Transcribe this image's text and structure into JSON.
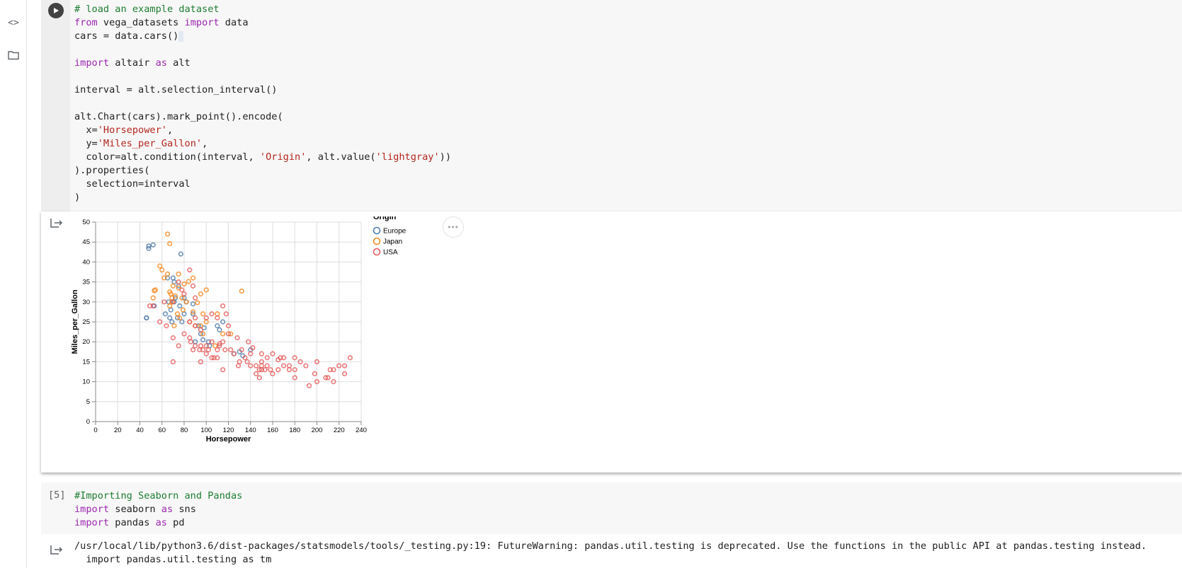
{
  "sidebar": {
    "code_icon": "code-icon",
    "folder_icon": "folder-icon",
    "code_glyph": "<>"
  },
  "cell1": {
    "lines": [
      "# load an example dataset",
      "from vega_datasets import data",
      "cars = data.cars()",
      "",
      "import altair as alt",
      "",
      "interval = alt.selection_interval()",
      "",
      "alt.Chart(cars).mark_point().encode(",
      "  x='Horsepower',",
      "  y='Miles_per_Gallon',",
      "  color=alt.condition(interval, 'Origin', alt.value('lightgray'))",
      ").properties(",
      "  selection=interval",
      ")"
    ]
  },
  "chart_data": {
    "type": "scatter",
    "xlabel": "Horsepower",
    "ylabel": "Miles_per_Gallon",
    "xlim": [
      0,
      240
    ],
    "ylim": [
      0,
      50
    ],
    "xticks": [
      0,
      20,
      40,
      60,
      80,
      100,
      120,
      140,
      160,
      180,
      200,
      220,
      240
    ],
    "yticks": [
      0,
      5,
      10,
      15,
      20,
      25,
      30,
      35,
      40,
      45,
      50
    ],
    "legend_title": "Origin",
    "grid": true,
    "series": [
      {
        "name": "Europe",
        "color": "#4c78a8",
        "points": [
          [
            46,
            26
          ],
          [
            46,
            26
          ],
          [
            48,
            43.4
          ],
          [
            48,
            44
          ],
          [
            52,
            44.3
          ],
          [
            53,
            29
          ],
          [
            63,
            27
          ],
          [
            65,
            36
          ],
          [
            67,
            26
          ],
          [
            69,
            25
          ],
          [
            70,
            36
          ],
          [
            71,
            30
          ],
          [
            74,
            26
          ],
          [
            76,
            29
          ],
          [
            77,
            42
          ],
          [
            78,
            25
          ],
          [
            80,
            31
          ],
          [
            82,
            30
          ],
          [
            88,
            29.5
          ],
          [
            90,
            20
          ],
          [
            95,
            22
          ],
          [
            98,
            23.5
          ],
          [
            102,
            20
          ],
          [
            103,
            19
          ],
          [
            110,
            24
          ],
          [
            112,
            23
          ],
          [
            115,
            25
          ],
          [
            125,
            17
          ],
          [
            130,
            17.5
          ],
          [
            133,
            16.5
          ],
          [
            140,
            18
          ],
          [
            66,
            30
          ],
          [
            71,
            35
          ],
          [
            75,
            34
          ],
          [
            68,
            28
          ],
          [
            72,
            31
          ],
          [
            80,
            27
          ],
          [
            88,
            27
          ],
          [
            93,
            24
          ],
          [
            97,
            20.5
          ]
        ]
      },
      {
        "name": "Japan",
        "color": "#f58518",
        "points": [
          [
            52,
            31
          ],
          [
            53,
            32.8
          ],
          [
            54,
            33
          ],
          [
            58,
            39
          ],
          [
            60,
            38
          ],
          [
            62,
            36
          ],
          [
            65,
            47
          ],
          [
            67,
            44.6
          ],
          [
            65,
            37
          ],
          [
            67,
            32.5
          ],
          [
            68,
            32
          ],
          [
            69,
            30
          ],
          [
            70,
            34
          ],
          [
            72,
            31.5
          ],
          [
            75,
            33.5
          ],
          [
            75,
            37
          ],
          [
            76,
            26
          ],
          [
            78,
            31
          ],
          [
            79,
            28
          ],
          [
            80,
            34.5
          ],
          [
            82,
            30
          ],
          [
            84,
            35.1
          ],
          [
            88,
            36
          ],
          [
            88,
            27.5
          ],
          [
            90,
            24
          ],
          [
            92,
            29.8
          ],
          [
            95,
            32
          ],
          [
            95,
            24
          ],
          [
            97,
            27
          ],
          [
            97,
            22
          ],
          [
            100,
            33
          ],
          [
            100,
            25
          ],
          [
            108,
            19
          ],
          [
            110,
            27
          ],
          [
            115,
            22
          ],
          [
            122,
            22
          ],
          [
            132,
            32.7
          ],
          [
            67,
            29
          ],
          [
            69,
            31
          ],
          [
            71,
            24
          ],
          [
            74,
            27
          ],
          [
            85,
            25
          ]
        ]
      },
      {
        "name": "USA",
        "color": "#e45756",
        "points": [
          [
            49,
            29
          ],
          [
            52,
            29
          ],
          [
            58,
            25
          ],
          [
            62,
            30
          ],
          [
            64,
            24
          ],
          [
            70,
            21
          ],
          [
            70,
            15
          ],
          [
            75,
            19
          ],
          [
            80,
            22
          ],
          [
            85,
            21
          ],
          [
            86,
            20
          ],
          [
            88,
            18
          ],
          [
            90,
            19
          ],
          [
            90,
            24
          ],
          [
            94,
            18
          ],
          [
            95,
            19
          ],
          [
            97,
            18
          ],
          [
            100,
            17
          ],
          [
            100,
            19
          ],
          [
            102,
            18
          ],
          [
            105,
            20
          ],
          [
            107,
            16
          ],
          [
            110,
            18
          ],
          [
            110,
            16
          ],
          [
            112,
            19
          ],
          [
            115,
            20
          ],
          [
            117,
            18
          ],
          [
            120,
            22
          ],
          [
            122,
            18
          ],
          [
            125,
            17
          ],
          [
            129,
            14
          ],
          [
            130,
            15
          ],
          [
            135,
            16
          ],
          [
            137,
            15
          ],
          [
            140,
            14
          ],
          [
            140,
            17
          ],
          [
            145,
            14
          ],
          [
            145,
            12
          ],
          [
            148,
            13
          ],
          [
            150,
            14
          ],
          [
            150,
            13
          ],
          [
            150,
            15
          ],
          [
            153,
            13
          ],
          [
            155,
            14
          ],
          [
            158,
            13
          ],
          [
            160,
            12
          ],
          [
            165,
            13
          ],
          [
            167,
            16
          ],
          [
            170,
            14
          ],
          [
            175,
            13
          ],
          [
            175,
            14
          ],
          [
            180,
            13
          ],
          [
            180,
            11
          ],
          [
            190,
            14
          ],
          [
            193,
            9
          ],
          [
            198,
            12
          ],
          [
            200,
            10
          ],
          [
            208,
            11
          ],
          [
            210,
            11
          ],
          [
            215,
            10
          ],
          [
            215,
            13
          ],
          [
            220,
            14
          ],
          [
            225,
            12
          ],
          [
            225,
            14
          ],
          [
            230,
            16
          ],
          [
            85,
            25
          ],
          [
            90,
            26
          ],
          [
            95,
            23
          ],
          [
            100,
            26
          ],
          [
            105,
            27
          ],
          [
            110,
            26
          ],
          [
            115,
            29
          ],
          [
            118,
            27
          ],
          [
            120,
            24
          ],
          [
            75,
            35
          ],
          [
            80,
            32
          ],
          [
            85,
            38
          ],
          [
            90,
            31
          ],
          [
            70,
            30
          ],
          [
            78,
            33
          ],
          [
            88,
            34
          ],
          [
            112,
            19.5
          ],
          [
            128,
            21
          ],
          [
            132,
            18
          ],
          [
            138,
            20
          ],
          [
            142,
            18.5
          ],
          [
            150,
            17
          ],
          [
            155,
            16
          ],
          [
            160,
            17
          ],
          [
            170,
            16
          ],
          [
            180,
            16
          ],
          [
            185,
            15
          ],
          [
            95,
            15
          ],
          [
            105,
            16
          ],
          [
            115,
            13
          ],
          [
            148,
            11
          ],
          [
            200,
            15
          ],
          [
            212,
            13
          ],
          [
            165,
            15.5
          ]
        ]
      }
    ]
  },
  "menu_button": {
    "label": "•••"
  },
  "cell2": {
    "execution_count": "[5]",
    "lines": [
      "#Importing Seaborn and Pandas",
      "import seaborn as sns",
      "import pandas as pd"
    ]
  },
  "warning": {
    "lines": [
      "/usr/local/lib/python3.6/dist-packages/statsmodels/tools/_testing.py:19: FutureWarning: pandas.util.testing is deprecated. Use the functions in the public API at pandas.testing instead.",
      "  import pandas.util.testing as tm"
    ]
  }
}
